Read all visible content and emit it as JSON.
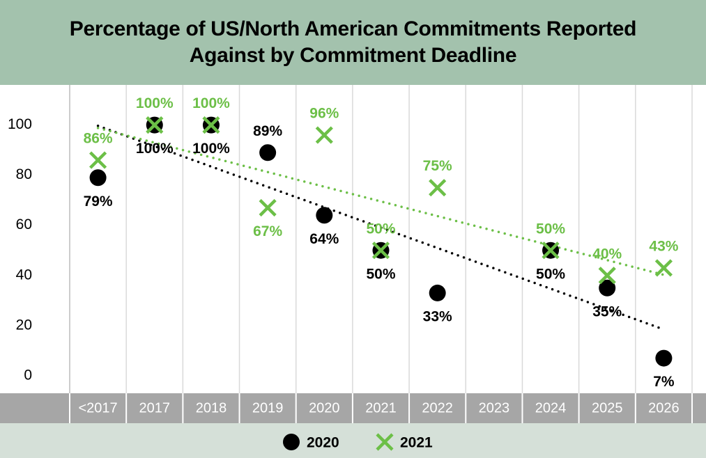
{
  "chart_data": {
    "type": "scatter",
    "title": "Percentage of US/North American Commitments Reported Against by Commitment Deadline",
    "categories": [
      "<2017",
      "2017",
      "2018",
      "2019",
      "2020",
      "2021",
      "2022",
      "2023",
      "2024",
      "2025",
      "2026"
    ],
    "series": [
      {
        "name": "2020",
        "color": "#000000",
        "marker": "circle",
        "trendline": true,
        "values": [
          79,
          100,
          100,
          89,
          64,
          50,
          33,
          null,
          50,
          35,
          7
        ],
        "value_labels": [
          "79%",
          "100%",
          "100%",
          "89%",
          "64%",
          "50%",
          "33%",
          null,
          "50%",
          "35%",
          "7%"
        ]
      },
      {
        "name": "2021",
        "color": "#6cbf47",
        "marker": "x",
        "trendline": true,
        "values": [
          86,
          100,
          100,
          67,
          96,
          50,
          75,
          null,
          50,
          40,
          43
        ],
        "value_labels": [
          "86%",
          "100%",
          "100%",
          "67%",
          "96%",
          "50%",
          "75%",
          null,
          "50%",
          "40%",
          "43%"
        ]
      }
    ],
    "ylim": [
      -7,
      116
    ],
    "yticks": [
      0,
      20,
      40,
      60,
      80,
      100
    ],
    "grid": "vertical",
    "legend": "bottom"
  }
}
